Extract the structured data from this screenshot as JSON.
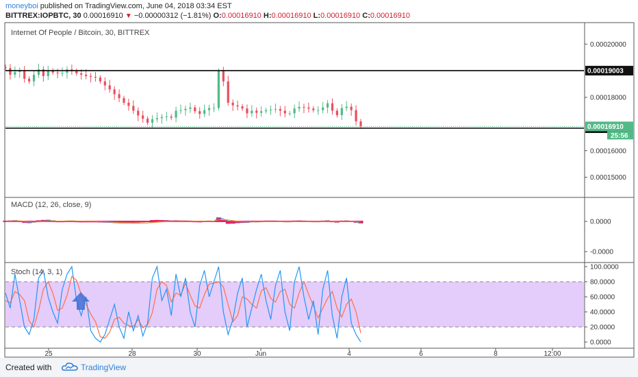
{
  "header": {
    "user": "moneyboi",
    "published_text": "published on TradingView.com, June 04, 2018 03:34 EST",
    "symbol": "BITTREX:IOPBTC, 30",
    "last": "0.00016910",
    "change_arrow": "▼",
    "change": "−0.00000312 (−1.81%)",
    "o_label": "O:",
    "o_value": "0.00016910",
    "h_label": "H:",
    "h_value": "0.00016910",
    "l_label": "L:",
    "l_value": "0.00016910",
    "c_label": "C:",
    "c_value": "0.00016910"
  },
  "footer": {
    "created_with": "Created with",
    "brand": "TradingView",
    "logo_icon": "tradingview-cloud-icon"
  },
  "colors": {
    "up": "#53b987",
    "down": "#eb4d5c",
    "macd_line": "#3d85c6",
    "signal_line": "#ff8a1c",
    "hist": "#e91e63",
    "stoch_k": "#2196f3",
    "stoch_d": "#ff7043",
    "stoch_band": "#e4ccfb",
    "price_tag": "#53b987"
  },
  "chart_data": [
    {
      "type": "candlestick",
      "title": "Internet Of People / Bitcoin, 30, BITTREX",
      "x_tick_labels": [
        "25",
        "28",
        "30",
        "Jun",
        "4",
        "6",
        "8",
        "12:00"
      ],
      "y_tick_labels": [
        "0.00020000",
        "0.00018000",
        "0.00016000",
        "0.00015000"
      ],
      "ylim": [
        0.0001427,
        0.0002078
      ],
      "horizontal_lines": [
        {
          "label": "0.00019003",
          "value": 0.00019003
        },
        {
          "label": "0.00016843",
          "value": 0.00016843
        }
      ],
      "last_price_label": "0.00016910",
      "last_price": 0.0001691,
      "countdown": "25:56",
      "close_series": [
        0.000191,
        0.0001885,
        0.0001895,
        0.00019,
        0.000187,
        0.000186,
        0.0001885,
        0.0001905,
        0.000188,
        0.00019,
        0.0001893,
        0.000189,
        0.0001892,
        0.0001905,
        0.00019,
        0.000189,
        0.0001885,
        0.000188,
        0.0001877,
        0.0001874,
        0.000186,
        0.0001845,
        0.000183,
        0.0001812,
        0.0001797,
        0.000178,
        0.0001768,
        0.000175,
        0.0001732,
        0.000172,
        0.0001705,
        0.0001718,
        0.0001722,
        0.0001726,
        0.0001728,
        0.0001724,
        0.000175,
        0.0001752,
        0.0001757,
        0.0001762,
        0.0001748,
        0.0001738,
        0.0001752,
        0.000176,
        0.000176,
        0.00019,
        0.000186,
        0.000178,
        0.000177,
        0.0001766,
        0.0001758,
        0.000174,
        0.000175,
        0.0001742,
        0.0001748,
        0.0001752,
        0.0001754,
        0.0001756,
        0.000175,
        0.000174,
        0.000174,
        0.0001758,
        0.0001764,
        0.0001762,
        0.0001758,
        0.0001752,
        0.0001752,
        0.0001762,
        0.0001778,
        0.000175,
        0.0001733,
        0.000176,
        0.0001765,
        0.0001752,
        0.000171,
        0.0001691
      ]
    },
    {
      "type": "line",
      "title": "MACD (12, 26, close, 9)",
      "y_tick_labels": [
        "0.0000",
        "-0.0000"
      ],
      "ylim": [
        -1,
        1
      ],
      "series": [
        {
          "name": "MACD",
          "values": [
            0.01,
            0.03,
            0.08,
            0.06,
            -0.04,
            -0.12,
            -0.1,
            -0.03,
            0.04,
            0.1,
            0.08,
            0.03,
            0.02,
            0.05,
            0.06,
            0.04,
            0.02,
            0.0,
            -0.01,
            -0.02,
            -0.05,
            -0.08,
            -0.12,
            -0.16,
            -0.18,
            -0.2,
            -0.2,
            -0.22,
            -0.22,
            -0.2,
            -0.18,
            -0.1,
            -0.05,
            -0.02,
            0.0,
            0.0,
            0.03,
            0.03,
            0.04,
            0.04,
            0.02,
            0.0,
            0.02,
            0.03,
            0.02,
            0.45,
            0.3,
            0.05,
            -0.02,
            -0.05,
            -0.07,
            -0.09,
            -0.06,
            -0.07,
            -0.05,
            -0.03,
            -0.02,
            -0.02,
            -0.03,
            -0.05,
            -0.05,
            -0.02,
            0.0,
            0.0,
            -0.01,
            -0.02,
            -0.02,
            0.0,
            0.04,
            0.0,
            -0.06,
            0.0,
            0.02,
            0.0,
            -0.08,
            -0.18
          ]
        },
        {
          "name": "Signal",
          "values": [
            0.0,
            0.01,
            0.04,
            0.05,
            0.02,
            -0.04,
            -0.07,
            -0.06,
            -0.02,
            0.03,
            0.05,
            0.04,
            0.03,
            0.04,
            0.05,
            0.05,
            0.04,
            0.02,
            0.01,
            0.0,
            -0.02,
            -0.04,
            -0.07,
            -0.1,
            -0.13,
            -0.15,
            -0.17,
            -0.18,
            -0.19,
            -0.19,
            -0.18,
            -0.15,
            -0.11,
            -0.07,
            -0.04,
            -0.02,
            0.0,
            0.01,
            0.02,
            0.03,
            0.03,
            0.02,
            0.02,
            0.02,
            0.02,
            0.2,
            0.25,
            0.18,
            0.1,
            0.03,
            -0.01,
            -0.04,
            -0.05,
            -0.06,
            -0.05,
            -0.04,
            -0.03,
            -0.03,
            -0.03,
            -0.04,
            -0.04,
            -0.03,
            -0.02,
            -0.01,
            -0.01,
            -0.01,
            -0.01,
            -0.01,
            0.01,
            0.01,
            -0.02,
            -0.01,
            0.0,
            0.0,
            -0.03,
            -0.08
          ]
        }
      ]
    },
    {
      "type": "line",
      "title": "Stoch (14, 3, 1)",
      "y_tick_labels": [
        "100.0000",
        "80.0000",
        "60.0000",
        "40.0000",
        "20.0000",
        "0.0000"
      ],
      "ylim": [
        0,
        100
      ],
      "band": [
        20,
        80
      ],
      "series": [
        {
          "name": "%K",
          "values": [
            65,
            45,
            90,
            55,
            20,
            10,
            30,
            85,
            95,
            60,
            40,
            25,
            70,
            90,
            100,
            55,
            35,
            60,
            15,
            5,
            0,
            10,
            30,
            50,
            20,
            5,
            40,
            15,
            35,
            8,
            25,
            85,
            100,
            55,
            70,
            35,
            90,
            60,
            85,
            40,
            20,
            75,
            95,
            60,
            80,
            100,
            40,
            10,
            30,
            65,
            85,
            20,
            45,
            70,
            90,
            55,
            30,
            75,
            95,
            40,
            15,
            80,
            100,
            60,
            30,
            55,
            10,
            70,
            95,
            35,
            5,
            60,
            85,
            25,
            10,
            0
          ]
        },
        {
          "name": "%D",
          "values": [
            55,
            52,
            67,
            63,
            55,
            28,
            20,
            42,
            70,
            80,
            65,
            42,
            45,
            62,
            87,
            82,
            63,
            50,
            37,
            27,
            7,
            5,
            13,
            30,
            33,
            25,
            22,
            20,
            30,
            19,
            23,
            39,
            70,
            80,
            75,
            53,
            65,
            62,
            78,
            62,
            48,
            45,
            63,
            77,
            78,
            80,
            73,
            50,
            27,
            35,
            60,
            57,
            50,
            45,
            68,
            72,
            58,
            53,
            67,
            70,
            50,
            45,
            65,
            80,
            63,
            48,
            32,
            45,
            58,
            67,
            45,
            33,
            50,
            57,
            40,
            12
          ]
        }
      ]
    }
  ]
}
